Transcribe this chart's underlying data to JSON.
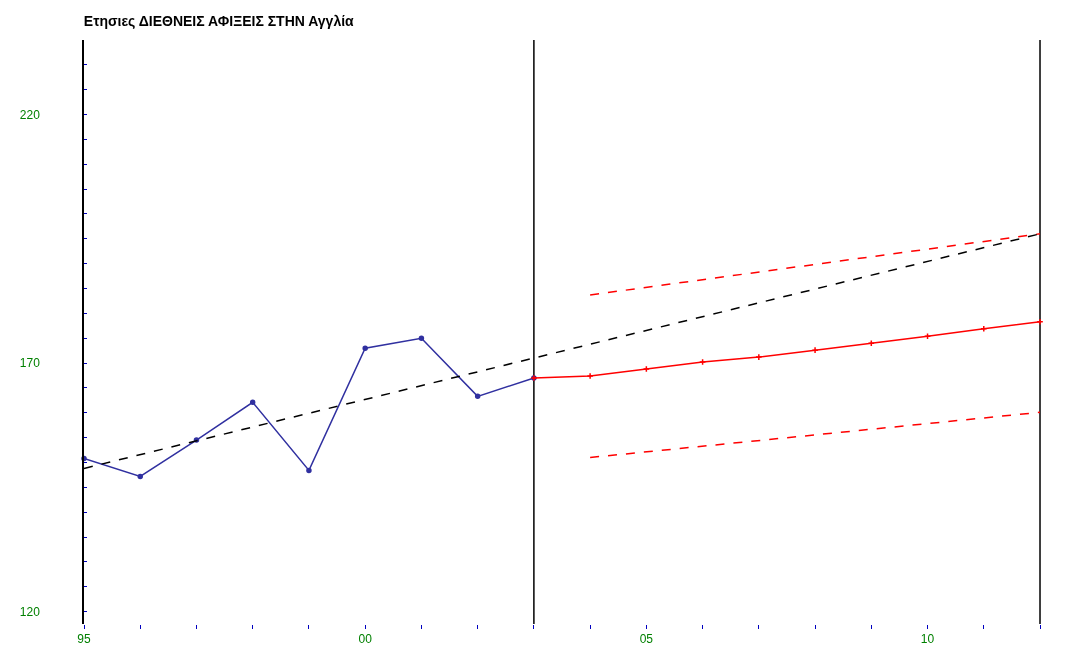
{
  "chart_data": {
    "type": "line",
    "title": "Ετησιες ΔΙΕΘΝΕΙΣ ΑΦΙΞΕΙΣ ΣΤΗΝ Αγγλία",
    "xlim": [
      1995,
      2012.8
    ],
    "ylim": [
      117.5,
      235
    ],
    "xticks": [
      {
        "value": 1995,
        "label": "95"
      },
      {
        "value": 1996,
        "label": null
      },
      {
        "value": 1997,
        "label": null
      },
      {
        "value": 1998,
        "label": null
      },
      {
        "value": 1999,
        "label": null
      },
      {
        "value": 2000,
        "label": "00"
      },
      {
        "value": 2001,
        "label": null
      },
      {
        "value": 2002,
        "label": null
      },
      {
        "value": 2003,
        "label": null
      },
      {
        "value": 2004,
        "label": null
      },
      {
        "value": 2005,
        "label": "05"
      },
      {
        "value": 2006,
        "label": null
      },
      {
        "value": 2007,
        "label": null
      },
      {
        "value": 2008,
        "label": null
      },
      {
        "value": 2009,
        "label": null
      },
      {
        "value": 2010,
        "label": "10"
      },
      {
        "value": 2011,
        "label": null
      },
      {
        "value": 2012,
        "label": null
      }
    ],
    "yticks": [
      120,
      {
        "value": 125,
        "label": null
      },
      {
        "value": 130,
        "label": null
      },
      {
        "value": 135,
        "label": null
      },
      {
        "value": 140,
        "label": null
      },
      {
        "value": 145,
        "label": null
      },
      {
        "value": 150,
        "label": null
      },
      {
        "value": 155,
        "label": null
      },
      {
        "value": 160,
        "label": null
      },
      {
        "value": 165,
        "label": null
      },
      170,
      {
        "value": 175,
        "label": null
      },
      {
        "value": 180,
        "label": null
      },
      {
        "value": 185,
        "label": null
      },
      {
        "value": 190,
        "label": null
      },
      {
        "value": 195,
        "label": null
      },
      {
        "value": 200,
        "label": null
      },
      {
        "value": 205,
        "label": null
      },
      {
        "value": 210,
        "label": null
      },
      {
        "value": 215,
        "label": null
      },
      220,
      {
        "value": 225,
        "label": null
      },
      {
        "value": 230,
        "label": null
      }
    ],
    "grid": false,
    "series": [
      {
        "color": "#3030a0",
        "marker": "circle",
        "line_style": "solid",
        "x": [
          1995,
          1996,
          1997,
          1998,
          1999,
          2000,
          2001,
          2002,
          2003
        ],
        "values": [
          150.8,
          147.2,
          154.5,
          162.1,
          148.4,
          173,
          175,
          163.3,
          167
        ]
      },
      {
        "color": "#ff0000",
        "marker": "cross",
        "line_style": "solid",
        "x": [
          2003,
          2004,
          2005,
          2006,
          2007,
          2008,
          2009,
          2010,
          2011,
          2012
        ],
        "values": [
          167,
          167.4,
          168.8,
          170.2,
          171.2,
          172.6,
          174,
          175.4,
          176.9,
          178.3
        ]
      },
      {
        "color": "#ff0000",
        "marker": "none",
        "line_style": "dashed",
        "x": [
          2004,
          2012
        ],
        "values": [
          183.7,
          196
        ]
      },
      {
        "color": "#ff0000",
        "marker": "none",
        "line_style": "dashed",
        "x": [
          2004,
          2012
        ],
        "values": [
          151,
          160.1
        ]
      },
      {
        "color": "#000000",
        "marker": "none",
        "line_style": "dashed",
        "x": [
          1995,
          2012
        ],
        "values": [
          148.8,
          196
        ]
      }
    ],
    "ref_lines": [
      {
        "axis": "x",
        "value": 2003,
        "color": "#000000"
      },
      {
        "axis": "x",
        "value": 2012,
        "color": "#000000"
      }
    ]
  }
}
